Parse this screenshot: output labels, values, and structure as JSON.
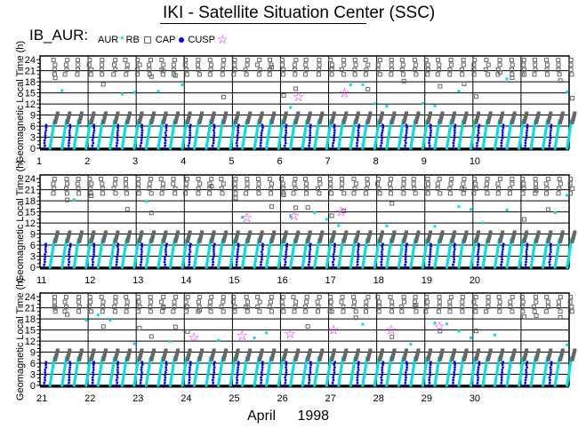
{
  "header": {
    "title": "IKI - Satellite Situation Center (SSC)",
    "label": "IB_AUR:",
    "month": "April",
    "year": "1998"
  },
  "legend": [
    {
      "name": "AUR",
      "symbol": "asterisk",
      "color": "#00e0e0"
    },
    {
      "name": "RB",
      "symbol": "square",
      "color": "#666666"
    },
    {
      "name": "CAP",
      "symbol": "dot",
      "color": "#0000ff"
    },
    {
      "name": "CUSP",
      "symbol": "star",
      "color": "#ff00ff"
    }
  ],
  "chart_data": {
    "type": "scatter",
    "ylabel": "Geomagnetic Local Time (h)",
    "xlabel": "April 1998",
    "yticks": [
      0,
      3,
      6,
      9,
      12,
      15,
      18,
      21,
      24
    ],
    "ylim": [
      0,
      25
    ],
    "panels": [
      {
        "xlim": [
          1,
          12
        ],
        "day_labels": [
          "1",
          "2",
          "3",
          "4",
          "5",
          "6",
          "7",
          "8",
          "9",
          "10"
        ],
        "cusp": [
          [
            6.37,
            14
          ],
          [
            7.33,
            15
          ]
        ]
      },
      {
        "xlim": [
          11,
          22
        ],
        "day_labels": [
          "11",
          "12",
          "13",
          "14",
          "15",
          "16",
          "17",
          "18",
          "19",
          "20"
        ],
        "cusp": [
          [
            15.3,
            13.5
          ],
          [
            16.28,
            14
          ],
          [
            17.26,
            15
          ]
        ]
      },
      {
        "xlim": [
          21,
          32
        ],
        "day_labels": [
          "21",
          "22",
          "23",
          "24",
          "25",
          "26",
          "27",
          "28",
          "29",
          "30"
        ],
        "cusp": [
          [
            24.2,
            13
          ],
          [
            25.2,
            13.5
          ],
          [
            26.2,
            14
          ],
          [
            27.1,
            15
          ],
          [
            28.3,
            15
          ],
          [
            29.3,
            16
          ]
        ]
      }
    ],
    "passes_per_day": 4
  }
}
